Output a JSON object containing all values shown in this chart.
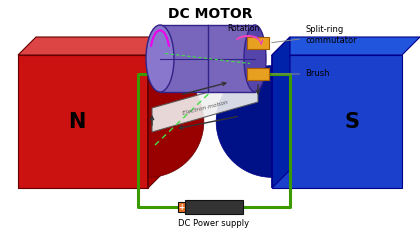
{
  "title": "DC MOTOR",
  "title_fontsize": 10,
  "red_face": "#cc1111",
  "red_top": "#dd4444",
  "red_side": "#aa0000",
  "red_notch": "#990000",
  "red_edge": "#660000",
  "blue_face": "#1a40cc",
  "blue_top": "#2255dd",
  "blue_side": "#0022aa",
  "blue_notch": "#001188",
  "blue_edge": "#000088",
  "N_label": "N",
  "S_label": "S",
  "coil_body": "#7766bb",
  "coil_left": "#8877cc",
  "coil_right": "#5544aa",
  "coil_edge": "#332288",
  "coil_mid": "#6655aa",
  "brush_color": "#e8a020",
  "brush_edge": "#aa6000",
  "wire_color": "#3a9a00",
  "wire_loop_color": "#3a9a00",
  "battery_body": "#333333",
  "battery_plus_col": "#e87020",
  "rotation_color": "#ee44bb",
  "axis_color": "#44dd44",
  "magenta_arc": "#ee00ee",
  "label_brush": "Brush",
  "label_split": "Split-ring\ncommutator",
  "label_power": "DC Power supply",
  "label_rotation": "Rotation",
  "label_electron": "Electron motion",
  "arrow_color": "#333333"
}
